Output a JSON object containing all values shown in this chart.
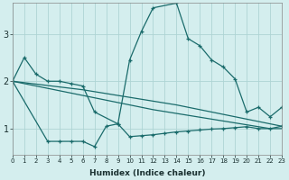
{
  "xlabel": "Humidex (Indice chaleur)",
  "bg_color": "#d4eeee",
  "grid_color": "#aed4d4",
  "line_color": "#1a6b6b",
  "x_ticks": [
    0,
    1,
    2,
    3,
    4,
    5,
    6,
    7,
    8,
    9,
    10,
    11,
    12,
    13,
    14,
    15,
    16,
    17,
    18,
    19,
    20,
    21,
    22,
    23
  ],
  "y_ticks": [
    1,
    2,
    3
  ],
  "xlim": [
    0,
    23
  ],
  "ylim": [
    0.45,
    3.65
  ],
  "series1": {
    "x": [
      0,
      1,
      2,
      3,
      4,
      5,
      6,
      7,
      9,
      10,
      11,
      12,
      14,
      15,
      16,
      17,
      18,
      19,
      20,
      21,
      22,
      23
    ],
    "y": [
      2.0,
      2.5,
      2.15,
      2.0,
      2.0,
      1.95,
      1.9,
      1.35,
      1.1,
      2.45,
      3.05,
      3.55,
      3.65,
      2.9,
      2.75,
      2.45,
      2.3,
      2.05,
      1.35,
      1.45,
      1.25,
      1.45
    ]
  },
  "series2": {
    "x": [
      0,
      3,
      4,
      5,
      6,
      7,
      8,
      9,
      10,
      11,
      12,
      13,
      14,
      15,
      16,
      17,
      18,
      19,
      20,
      21,
      22,
      23
    ],
    "y": [
      2.0,
      0.73,
      0.73,
      0.73,
      0.73,
      0.62,
      1.05,
      1.1,
      0.83,
      0.85,
      0.87,
      0.9,
      0.93,
      0.95,
      0.97,
      0.99,
      1.0,
      1.02,
      1.04,
      1.0,
      1.0,
      1.05
    ]
  },
  "series3": {
    "x": [
      0,
      1,
      2,
      3,
      4,
      5,
      6,
      7,
      8,
      9,
      10,
      11,
      12,
      13,
      14,
      15,
      16,
      17,
      18,
      19,
      20,
      21,
      22,
      23
    ],
    "y": [
      2.0,
      1.95,
      1.9,
      1.85,
      1.8,
      1.75,
      1.7,
      1.65,
      1.6,
      1.55,
      1.5,
      1.45,
      1.4,
      1.36,
      1.32,
      1.28,
      1.24,
      1.2,
      1.16,
      1.12,
      1.08,
      1.04,
      1.0,
      1.0
    ]
  },
  "series4": {
    "x": [
      0,
      1,
      2,
      3,
      4,
      5,
      6,
      7,
      8,
      9,
      10,
      11,
      12,
      13,
      14,
      15,
      16,
      17,
      18,
      19,
      20,
      21,
      22,
      23
    ],
    "y": [
      2.0,
      1.97,
      1.94,
      1.91,
      1.88,
      1.85,
      1.82,
      1.78,
      1.74,
      1.7,
      1.66,
      1.62,
      1.58,
      1.54,
      1.5,
      1.45,
      1.4,
      1.35,
      1.3,
      1.25,
      1.2,
      1.15,
      1.1,
      1.05
    ]
  }
}
